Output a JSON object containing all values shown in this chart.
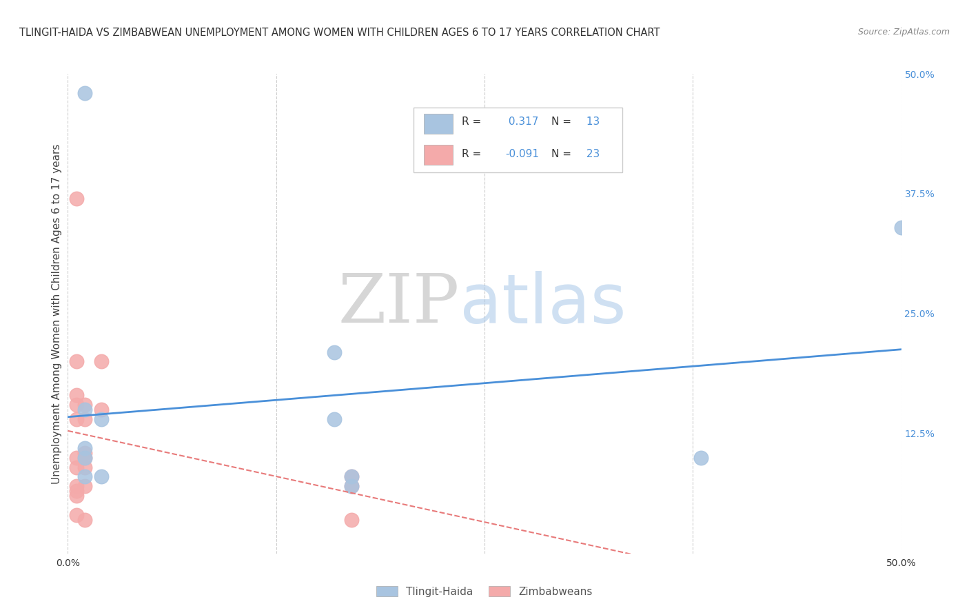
{
  "title": "TLINGIT-HAIDA VS ZIMBABWEAN UNEMPLOYMENT AMONG WOMEN WITH CHILDREN AGES 6 TO 17 YEARS CORRELATION CHART",
  "source": "Source: ZipAtlas.com",
  "ylabel": "Unemployment Among Women with Children Ages 6 to 17 years",
  "xlim": [
    0,
    0.5
  ],
  "ylim": [
    0,
    0.5
  ],
  "xticks": [
    0.0,
    0.125,
    0.25,
    0.375,
    0.5
  ],
  "xticklabels": [
    "0.0%",
    "",
    "",
    "",
    "50.0%"
  ],
  "yticks_right": [
    0.125,
    0.25,
    0.375,
    0.5
  ],
  "yticklabels_right": [
    "12.5%",
    "25.0%",
    "37.5%",
    "50.0%"
  ],
  "tlingit_color": "#a8c4e0",
  "zimbabwean_color": "#f4aaaa",
  "tlingit_R": 0.317,
  "tlingit_N": 13,
  "zimbabwean_R": -0.091,
  "zimbabwean_N": 23,
  "tlingit_line_color": "#4a90d9",
  "zimbabwean_line_color": "#e87a7a",
  "background_color": "#ffffff",
  "tlingit_x": [
    0.01,
    0.01,
    0.01,
    0.01,
    0.01,
    0.02,
    0.02,
    0.16,
    0.16,
    0.17,
    0.17,
    0.38,
    0.5
  ],
  "tlingit_y": [
    0.48,
    0.15,
    0.11,
    0.1,
    0.08,
    0.14,
    0.08,
    0.21,
    0.14,
    0.08,
    0.07,
    0.1,
    0.34
  ],
  "zimbabwean_x": [
    0.005,
    0.005,
    0.005,
    0.005,
    0.005,
    0.005,
    0.005,
    0.005,
    0.005,
    0.005,
    0.005,
    0.01,
    0.01,
    0.01,
    0.01,
    0.01,
    0.01,
    0.01,
    0.02,
    0.02,
    0.17,
    0.17,
    0.17
  ],
  "zimbabwean_y": [
    0.37,
    0.2,
    0.165,
    0.155,
    0.14,
    0.1,
    0.09,
    0.07,
    0.065,
    0.06,
    0.04,
    0.155,
    0.14,
    0.105,
    0.1,
    0.09,
    0.07,
    0.035,
    0.2,
    0.15,
    0.08,
    0.07,
    0.035
  ],
  "grid_color": "#cccccc",
  "title_fontsize": 10.5,
  "axis_label_fontsize": 11,
  "tick_fontsize": 10,
  "legend_fontsize": 11
}
